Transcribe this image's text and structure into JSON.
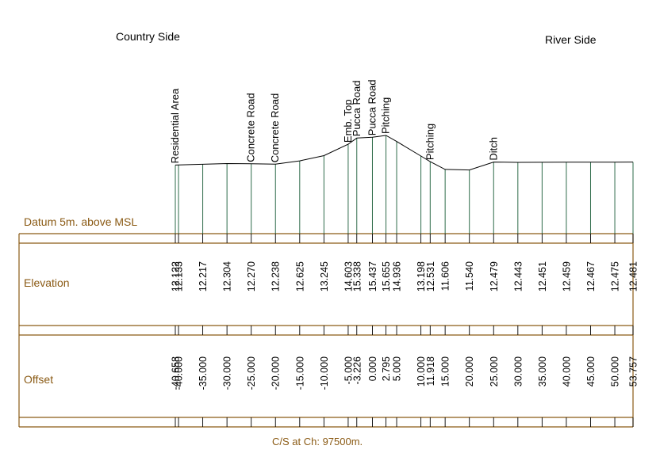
{
  "labels": {
    "country_side": "Country Side",
    "river_side": "River Side",
    "datum": "Datum 5m. above MSL",
    "elevation_row": "Elevation",
    "offset_row": "Offset",
    "caption": "C/S at Ch: 97500m."
  },
  "colors": {
    "frame": "#8a5a14",
    "ordinate": "#2e6b4a",
    "ground": "#000000"
  },
  "chart_data": {
    "type": "line",
    "xlabel": "Offset",
    "ylabel": "Elevation",
    "points": [
      {
        "offset": "-40.658",
        "x": -40.658,
        "elevation": "12.122",
        "y": 12.122,
        "feature": "Residential Area"
      },
      {
        "offset": "-40.000",
        "x": -40.0,
        "elevation": "12.133",
        "y": 12.133,
        "feature": ""
      },
      {
        "offset": "-35.000",
        "x": -35.0,
        "elevation": "12.217",
        "y": 12.217,
        "feature": ""
      },
      {
        "offset": "-30.000",
        "x": -30.0,
        "elevation": "12.304",
        "y": 12.304,
        "feature": ""
      },
      {
        "offset": "-25.000",
        "x": -25.0,
        "elevation": "12.270",
        "y": 12.27,
        "feature": "Concrete Road"
      },
      {
        "offset": "-20.000",
        "x": -20.0,
        "elevation": "12.238",
        "y": 12.238,
        "feature": "Concrete Road"
      },
      {
        "offset": "-15.000",
        "x": -15.0,
        "elevation": "12.625",
        "y": 12.625,
        "feature": ""
      },
      {
        "offset": "-10.000",
        "x": -10.0,
        "elevation": "13.245",
        "y": 13.245,
        "feature": ""
      },
      {
        "offset": "-5.000",
        "x": -5.0,
        "elevation": "14.603",
        "y": 14.603,
        "feature": "Emb. Top"
      },
      {
        "offset": "-3.226",
        "x": -3.226,
        "elevation": "15.338",
        "y": 15.338,
        "feature": "Pucca Road"
      },
      {
        "offset": "0.000",
        "x": 0.0,
        "elevation": "15.437",
        "y": 15.437,
        "feature": "Pucca Road"
      },
      {
        "offset": "2.795",
        "x": 2.795,
        "elevation": "15.655",
        "y": 15.655,
        "feature": "Pitching"
      },
      {
        "offset": "5.000",
        "x": 5.0,
        "elevation": "14.936",
        "y": 14.936,
        "feature": ""
      },
      {
        "offset": "10.000",
        "x": 10.0,
        "elevation": "13.198",
        "y": 13.198,
        "feature": ""
      },
      {
        "offset": "11.918",
        "x": 11.918,
        "elevation": "12.531",
        "y": 12.531,
        "feature": "Pitching"
      },
      {
        "offset": "15.000",
        "x": 15.0,
        "elevation": "11.606",
        "y": 11.606,
        "feature": ""
      },
      {
        "offset": "20.000",
        "x": 20.0,
        "elevation": "11.540",
        "y": 11.54,
        "feature": ""
      },
      {
        "offset": "25.000",
        "x": 25.0,
        "elevation": "12.479",
        "y": 12.479,
        "feature": "Ditch"
      },
      {
        "offset": "30.000",
        "x": 30.0,
        "elevation": "12.443",
        "y": 12.443,
        "feature": ""
      },
      {
        "offset": "35.000",
        "x": 35.0,
        "elevation": "12.451",
        "y": 12.451,
        "feature": ""
      },
      {
        "offset": "40.000",
        "x": 40.0,
        "elevation": "12.459",
        "y": 12.459,
        "feature": ""
      },
      {
        "offset": "45.000",
        "x": 45.0,
        "elevation": "12.467",
        "y": 12.467,
        "feature": ""
      },
      {
        "offset": "50.000",
        "x": 50.0,
        "elevation": "12.475",
        "y": 12.475,
        "feature": ""
      },
      {
        "offset": "53.757",
        "x": 53.757,
        "elevation": "12.481",
        "y": 12.481,
        "feature": ""
      }
    ]
  }
}
